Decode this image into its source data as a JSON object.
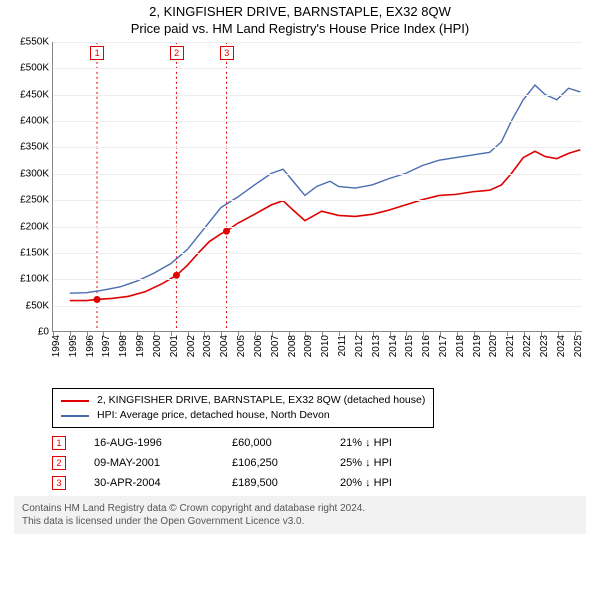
{
  "title_line1": "2, KINGFISHER DRIVE, BARNSTAPLE, EX32 8QW",
  "title_line2": "Price paid vs. HM Land Registry's House Price Index (HPI)",
  "chart": {
    "type": "line",
    "background_color": "#ffffff",
    "grid_color": "#eeeeee",
    "axis_color": "#888888",
    "ylim": [
      0,
      550000
    ],
    "ytick_step": 50000,
    "yticks": [
      "£0",
      "£50K",
      "£100K",
      "£150K",
      "£200K",
      "£250K",
      "£300K",
      "£350K",
      "£400K",
      "£450K",
      "£500K",
      "£550K"
    ],
    "xlim": [
      1994,
      2025.5
    ],
    "xticks": [
      1994,
      1995,
      1996,
      1997,
      1998,
      1999,
      2000,
      2001,
      2002,
      2003,
      2004,
      2005,
      2006,
      2007,
      2008,
      2009,
      2010,
      2011,
      2012,
      2013,
      2014,
      2015,
      2016,
      2017,
      2018,
      2019,
      2020,
      2021,
      2022,
      2023,
      2024,
      2025
    ],
    "label_fontsize": 10,
    "series": [
      {
        "name": "property",
        "label": "2, KINGFISHER DRIVE, BARNSTAPLE, EX32 8QW (detached house)",
        "color": "#e00000",
        "line_width": 1.6,
        "points": [
          [
            1995.0,
            58
          ],
          [
            1996.0,
            58
          ],
          [
            1996.6,
            60
          ],
          [
            1997.5,
            62
          ],
          [
            1998.5,
            66
          ],
          [
            1999.5,
            75
          ],
          [
            2000.5,
            90
          ],
          [
            2001.35,
            106
          ],
          [
            2002.0,
            125
          ],
          [
            2002.7,
            150
          ],
          [
            2003.3,
            170
          ],
          [
            2004.0,
            185
          ],
          [
            2004.33,
            190
          ],
          [
            2005.0,
            205
          ],
          [
            2006.0,
            222
          ],
          [
            2007.0,
            240
          ],
          [
            2007.7,
            248
          ],
          [
            2008.3,
            230
          ],
          [
            2009.0,
            210
          ],
          [
            2010.0,
            228
          ],
          [
            2011.0,
            220
          ],
          [
            2012.0,
            218
          ],
          [
            2013.0,
            222
          ],
          [
            2014.0,
            230
          ],
          [
            2015.0,
            240
          ],
          [
            2016.0,
            250
          ],
          [
            2017.0,
            258
          ],
          [
            2018.0,
            260
          ],
          [
            2019.0,
            265
          ],
          [
            2020.0,
            268
          ],
          [
            2020.7,
            278
          ],
          [
            2021.3,
            300
          ],
          [
            2022.0,
            330
          ],
          [
            2022.7,
            342
          ],
          [
            2023.3,
            332
          ],
          [
            2024.0,
            328
          ],
          [
            2024.7,
            338
          ],
          [
            2025.4,
            345
          ]
        ]
      },
      {
        "name": "hpi",
        "label": "HPI: Average price, detached house, North Devon",
        "color": "#4a6db0",
        "line_width": 1.4,
        "points": [
          [
            1995.0,
            72
          ],
          [
            1996.0,
            73
          ],
          [
            1997.0,
            78
          ],
          [
            1998.0,
            84
          ],
          [
            1999.0,
            95
          ],
          [
            2000.0,
            110
          ],
          [
            2001.0,
            128
          ],
          [
            2002.0,
            155
          ],
          [
            2003.0,
            195
          ],
          [
            2004.0,
            235
          ],
          [
            2005.0,
            255
          ],
          [
            2006.0,
            278
          ],
          [
            2007.0,
            300
          ],
          [
            2007.7,
            308
          ],
          [
            2008.3,
            285
          ],
          [
            2009.0,
            258
          ],
          [
            2009.7,
            275
          ],
          [
            2010.5,
            285
          ],
          [
            2011.0,
            275
          ],
          [
            2012.0,
            272
          ],
          [
            2013.0,
            278
          ],
          [
            2014.0,
            290
          ],
          [
            2015.0,
            300
          ],
          [
            2016.0,
            315
          ],
          [
            2017.0,
            325
          ],
          [
            2018.0,
            330
          ],
          [
            2019.0,
            335
          ],
          [
            2020.0,
            340
          ],
          [
            2020.7,
            360
          ],
          [
            2021.3,
            400
          ],
          [
            2022.0,
            440
          ],
          [
            2022.7,
            468
          ],
          [
            2023.3,
            450
          ],
          [
            2024.0,
            440
          ],
          [
            2024.7,
            462
          ],
          [
            2025.4,
            455
          ]
        ]
      }
    ],
    "sale_markers": [
      {
        "n": "1",
        "x": 1996.62,
        "price": 60
      },
      {
        "n": "2",
        "x": 2001.35,
        "price": 106
      },
      {
        "n": "3",
        "x": 2004.33,
        "price": 190
      }
    ],
    "vline_color": "#e00000",
    "vline_dash": "2,3"
  },
  "legend": {
    "border_color": "#000000",
    "items": [
      {
        "color": "#e00000",
        "label": "2, KINGFISHER DRIVE, BARNSTAPLE, EX32 8QW (detached house)"
      },
      {
        "color": "#4a6db0",
        "label": "HPI: Average price, detached house, North Devon"
      }
    ]
  },
  "sales": [
    {
      "n": "1",
      "date": "16-AUG-1996",
      "price": "£60,000",
      "diff": "21% ↓ HPI"
    },
    {
      "n": "2",
      "date": "09-MAY-2001",
      "price": "£106,250",
      "diff": "25% ↓ HPI"
    },
    {
      "n": "3",
      "date": "30-APR-2004",
      "price": "£189,500",
      "diff": "20% ↓ HPI"
    }
  ],
  "footer_line1": "Contains HM Land Registry data © Crown copyright and database right 2024.",
  "footer_line2": "This data is licensed under the Open Government Licence v3.0.",
  "footer_bg": "#f2f2f2",
  "footer_color": "#555555"
}
